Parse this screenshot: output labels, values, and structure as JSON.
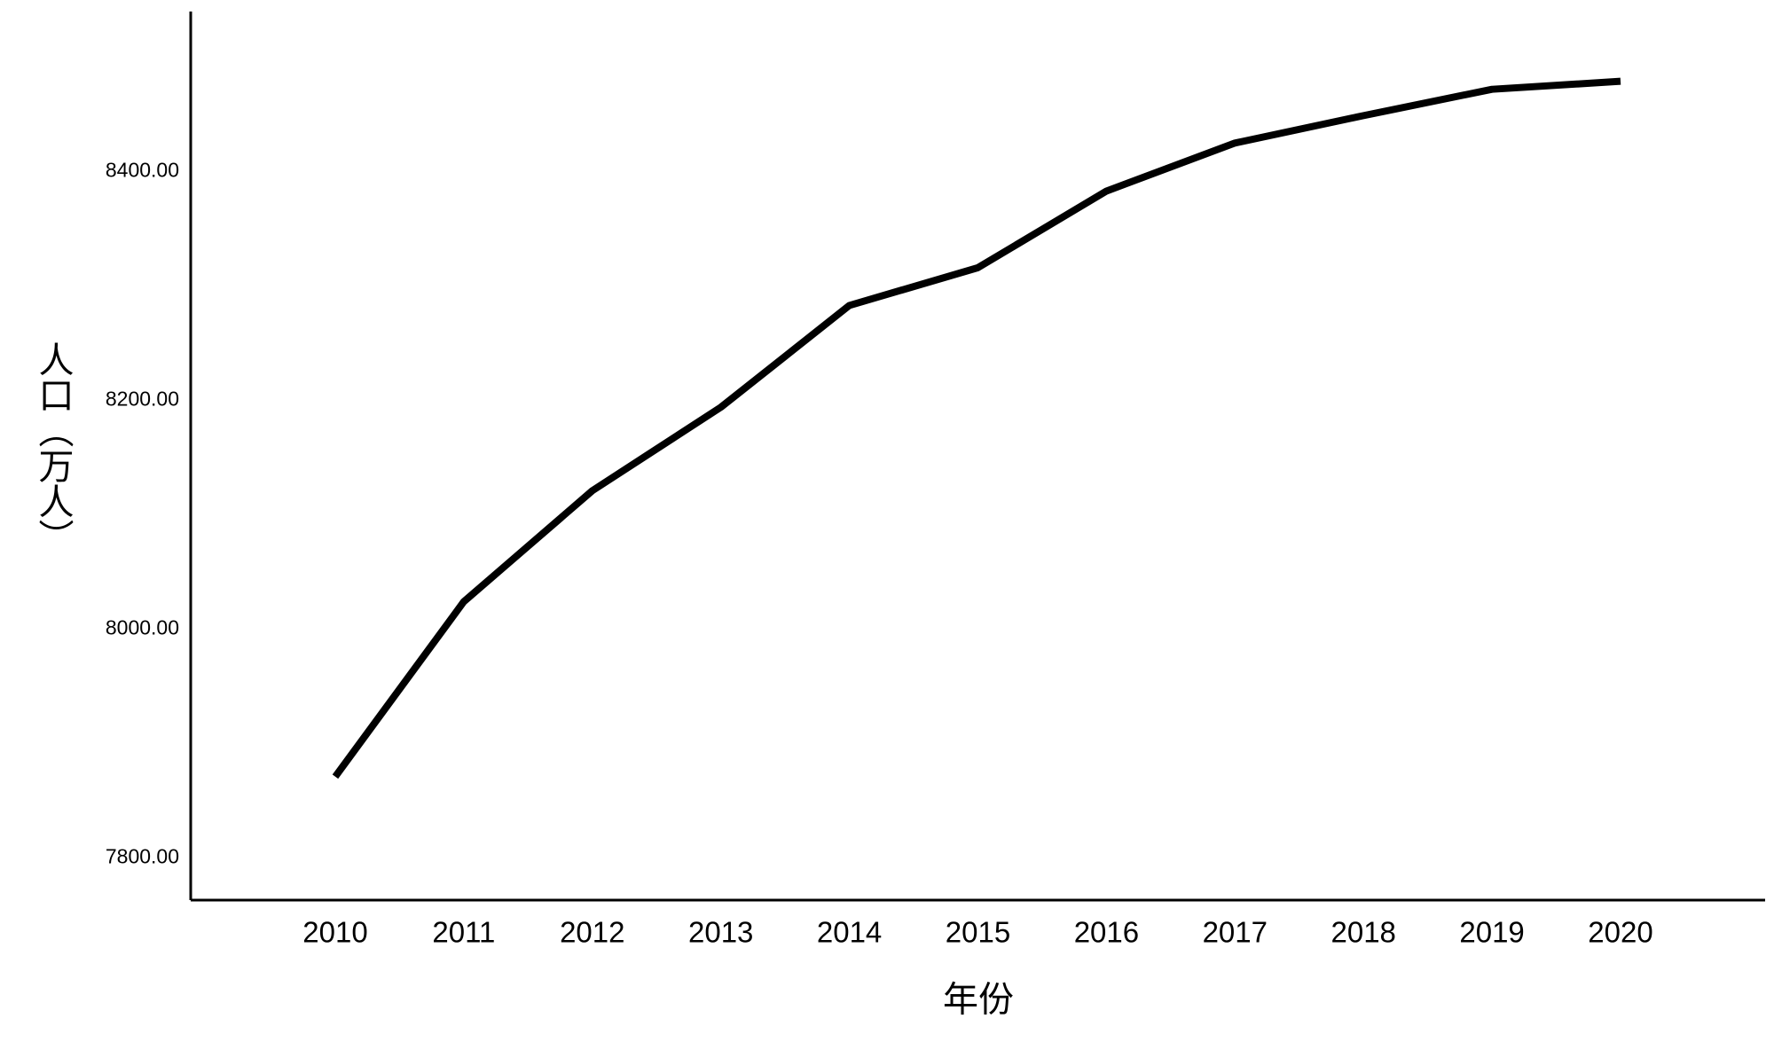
{
  "chart_data": {
    "type": "line",
    "x_label": "年份",
    "y_label": "人口（万人）",
    "categories": [
      "2010",
      "2011",
      "2012",
      "2013",
      "2014",
      "2015",
      "2016",
      "2017",
      "2018",
      "2019",
      "2020"
    ],
    "series": [
      {
        "name": "人口",
        "color": "#000000",
        "values": [
          7871,
          8024,
          8121,
          8194,
          8283,
          8316,
          8383,
          8425,
          8449,
          8472,
          8479
        ]
      }
    ],
    "ylim": [
      7763,
      8540
    ],
    "yticks": [
      {
        "value": 7800,
        "label": "7800.00"
      },
      {
        "value": 8000,
        "label": "8000.00"
      },
      {
        "value": 8200,
        "label": "8200.00"
      },
      {
        "value": 8400,
        "label": "8400.00"
      }
    ],
    "grid": false
  }
}
